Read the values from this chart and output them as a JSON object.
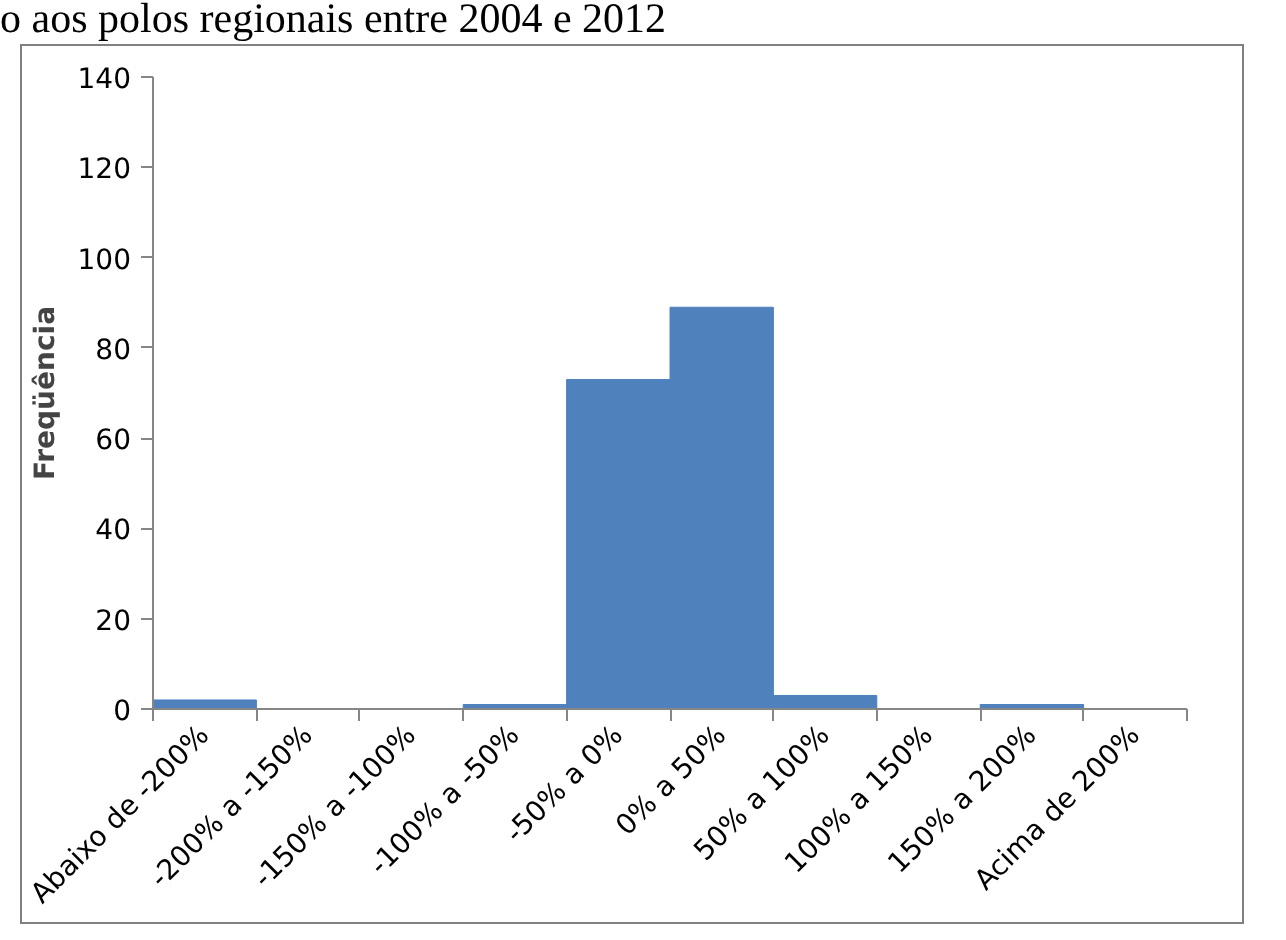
{
  "chart_data": {
    "type": "bar",
    "title": "o aos polos regionais entre 2004 e 2012",
    "ylabel": "Freqüência",
    "categories": [
      "Abaixo de -200%",
      "-200% a -150%",
      "-150% a -100%",
      "-100% a -50%",
      "-50% a 0%",
      "0% a 50%",
      "50% a 100%",
      "100% a 150%",
      "150% a 200%",
      "Acima de 200%"
    ],
    "values": [
      2,
      0,
      0,
      1,
      73,
      89,
      3,
      0,
      1,
      0
    ],
    "color": "#4f81bd",
    "ylim": [
      0,
      140
    ],
    "yticks": [
      0,
      20,
      40,
      60,
      80,
      100,
      120,
      140
    ],
    "grid": false
  }
}
